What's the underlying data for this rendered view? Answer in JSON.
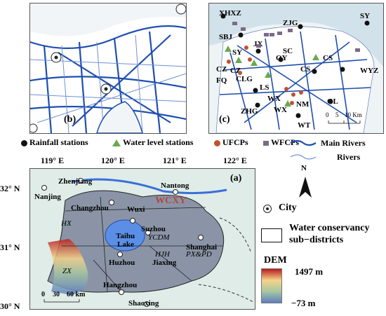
{
  "panels": {
    "b": {
      "label": "(b)"
    },
    "c": {
      "label": "(c)",
      "scale": {
        "ticks": [
          "0",
          "5",
          "10 Km"
        ]
      },
      "stations": [
        "XHXZ",
        "ZJG",
        "SY",
        "SBJ",
        "JX",
        "SY",
        "SC",
        "QY",
        "CS",
        "CZ",
        "CZ",
        "CLG",
        "CS",
        "WYZ",
        "FQ",
        "LS",
        "WX",
        "NM",
        "GL",
        "ZHG",
        "WX",
        "WT"
      ]
    },
    "a": {
      "label": "(a)",
      "region": "WCXY",
      "cities": [
        "Zhenjiang",
        "Nanjing",
        "Changzhou",
        "Wuxi",
        "Nantong",
        "Suzhou",
        "Shanghai",
        "Huzhou",
        "Jiaxing",
        "Hangzhou",
        "Shaoxing"
      ],
      "lake": [
        "Taihu",
        "Lake"
      ],
      "districts": [
        "HX",
        "YCDM",
        "PX&PD",
        "ZX",
        "HJH"
      ],
      "scalebar": [
        "0",
        "30",
        "60 km"
      ]
    }
  },
  "axes": {
    "x": [
      "119° E",
      "120° E",
      "121° E",
      "122° E"
    ],
    "y": [
      "32° N",
      "31° N",
      "30° N"
    ]
  },
  "legend": {
    "rainfall": "Rainfall stations",
    "water_level": "Water level stations",
    "ufcps": "UFCPs",
    "wfcps": "WFCPs",
    "main_rivers": "Main Rivers",
    "rivers": "Rivers",
    "city": "City",
    "subdistricts": "Water conservancy sub−districts",
    "dem_title": "DEM",
    "dem_max": "1497 m",
    "dem_min": "−73   m",
    "north": "N"
  },
  "colors": {
    "main_river": "#1f4fb0",
    "river": "#6f8fd8",
    "land": "#8a94a6",
    "lake": "#5b8fe6",
    "uf": "#c0522e",
    "wf": "#7b6b86",
    "wl": "#6aa84f"
  }
}
